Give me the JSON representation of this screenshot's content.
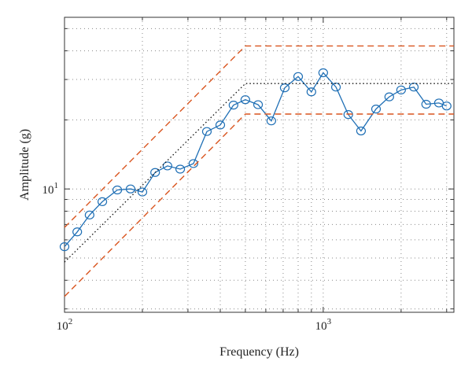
{
  "chart_data": {
    "type": "line",
    "xlabel": "Frequency (Hz)",
    "ylabel": "Amplitude (g)",
    "xscale": "log",
    "yscale": "log",
    "xlim": [
      100,
      3200
    ],
    "ylim": [
      2.9,
      56
    ],
    "grid": true,
    "x_ticks": [
      {
        "value": 100,
        "base": "10",
        "exp": "2"
      },
      {
        "value": 1000,
        "base": "10",
        "exp": "3"
      }
    ],
    "y_ticks": [
      {
        "value": 10,
        "base": "10",
        "exp": "1"
      }
    ],
    "colors": {
      "measured": "#1f6fb5",
      "limits": "#d9541e",
      "reference": "#111111",
      "grid": "#888888"
    },
    "series": [
      {
        "role": "measured",
        "style": "solid-circle-markers",
        "x": [
          100,
          112,
          125,
          140,
          160,
          180,
          200,
          224,
          250,
          280,
          315,
          355,
          400,
          450,
          500,
          560,
          630,
          710,
          800,
          900,
          1000,
          1120,
          1250,
          1400,
          1600,
          1800,
          2000,
          2240,
          2500,
          2800,
          3000
        ],
        "y": [
          5.6,
          6.5,
          7.7,
          8.8,
          9.9,
          10.0,
          9.7,
          11.8,
          12.6,
          12.2,
          12.9,
          17.8,
          19.0,
          23.2,
          24.5,
          23.3,
          19.8,
          27.6,
          30.9,
          26.5,
          32.1,
          27.8,
          21.1,
          17.9,
          22.3,
          25.2,
          27.0,
          27.8,
          23.4,
          23.7,
          23.0
        ]
      },
      {
        "role": "upper-limit",
        "style": "dashed",
        "x": [
          100,
          500,
          3200
        ],
        "y": [
          6.8,
          42.0,
          42.0
        ]
      },
      {
        "role": "lower-limit",
        "style": "dashed",
        "x": [
          100,
          500,
          3200
        ],
        "y": [
          3.4,
          21.2,
          21.2
        ]
      },
      {
        "role": "reference",
        "style": "dotted",
        "x": [
          100,
          500,
          3200
        ],
        "y": [
          4.8,
          28.8,
          28.8
        ]
      }
    ]
  }
}
